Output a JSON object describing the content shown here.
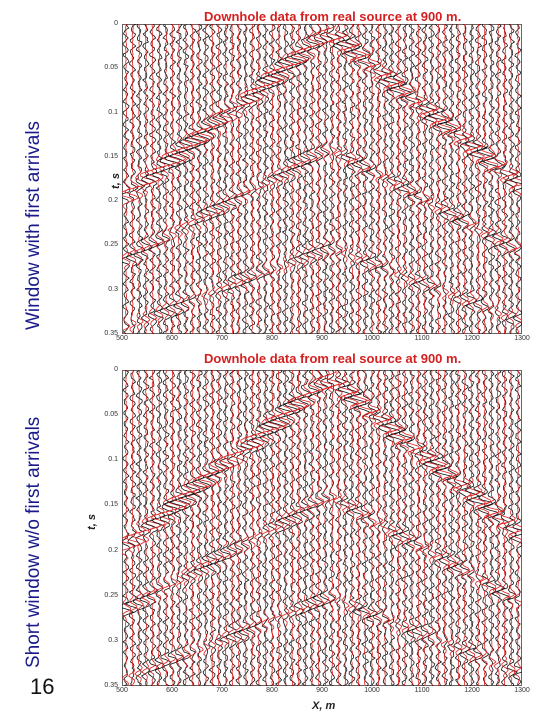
{
  "slide": {
    "page_number": "16",
    "label_top": "Window with first arrivals",
    "label_bottom": "Short window w/o first arrivals",
    "label_color": "#1a1a8c"
  },
  "panels": [
    {
      "title": "Downhole data from real source at 900 m.",
      "ylabel": "t, s",
      "xlabel": "",
      "yticks": [
        "0",
        "0.05",
        "0.1",
        "0.15",
        "0.2",
        "0.25",
        "0.3",
        "0.35"
      ],
      "xticks": [
        "500",
        "600",
        "700",
        "800",
        "900",
        "1000",
        "1100",
        "1200",
        "1300"
      ]
    },
    {
      "title": "Downhole data from real source at 900 m.",
      "ylabel": "t, s",
      "xlabel": "X, m",
      "yticks": [
        "0",
        "0.05",
        "0.1",
        "0.15",
        "0.2",
        "0.25",
        "0.3",
        "0.35"
      ],
      "xticks": [
        "500",
        "600",
        "700",
        "800",
        "900",
        "1000",
        "1100",
        "1200",
        "1300"
      ]
    }
  ],
  "colors": {
    "title": "#d62020",
    "trace_black": "#111111",
    "trace_red": "#e02020"
  }
}
